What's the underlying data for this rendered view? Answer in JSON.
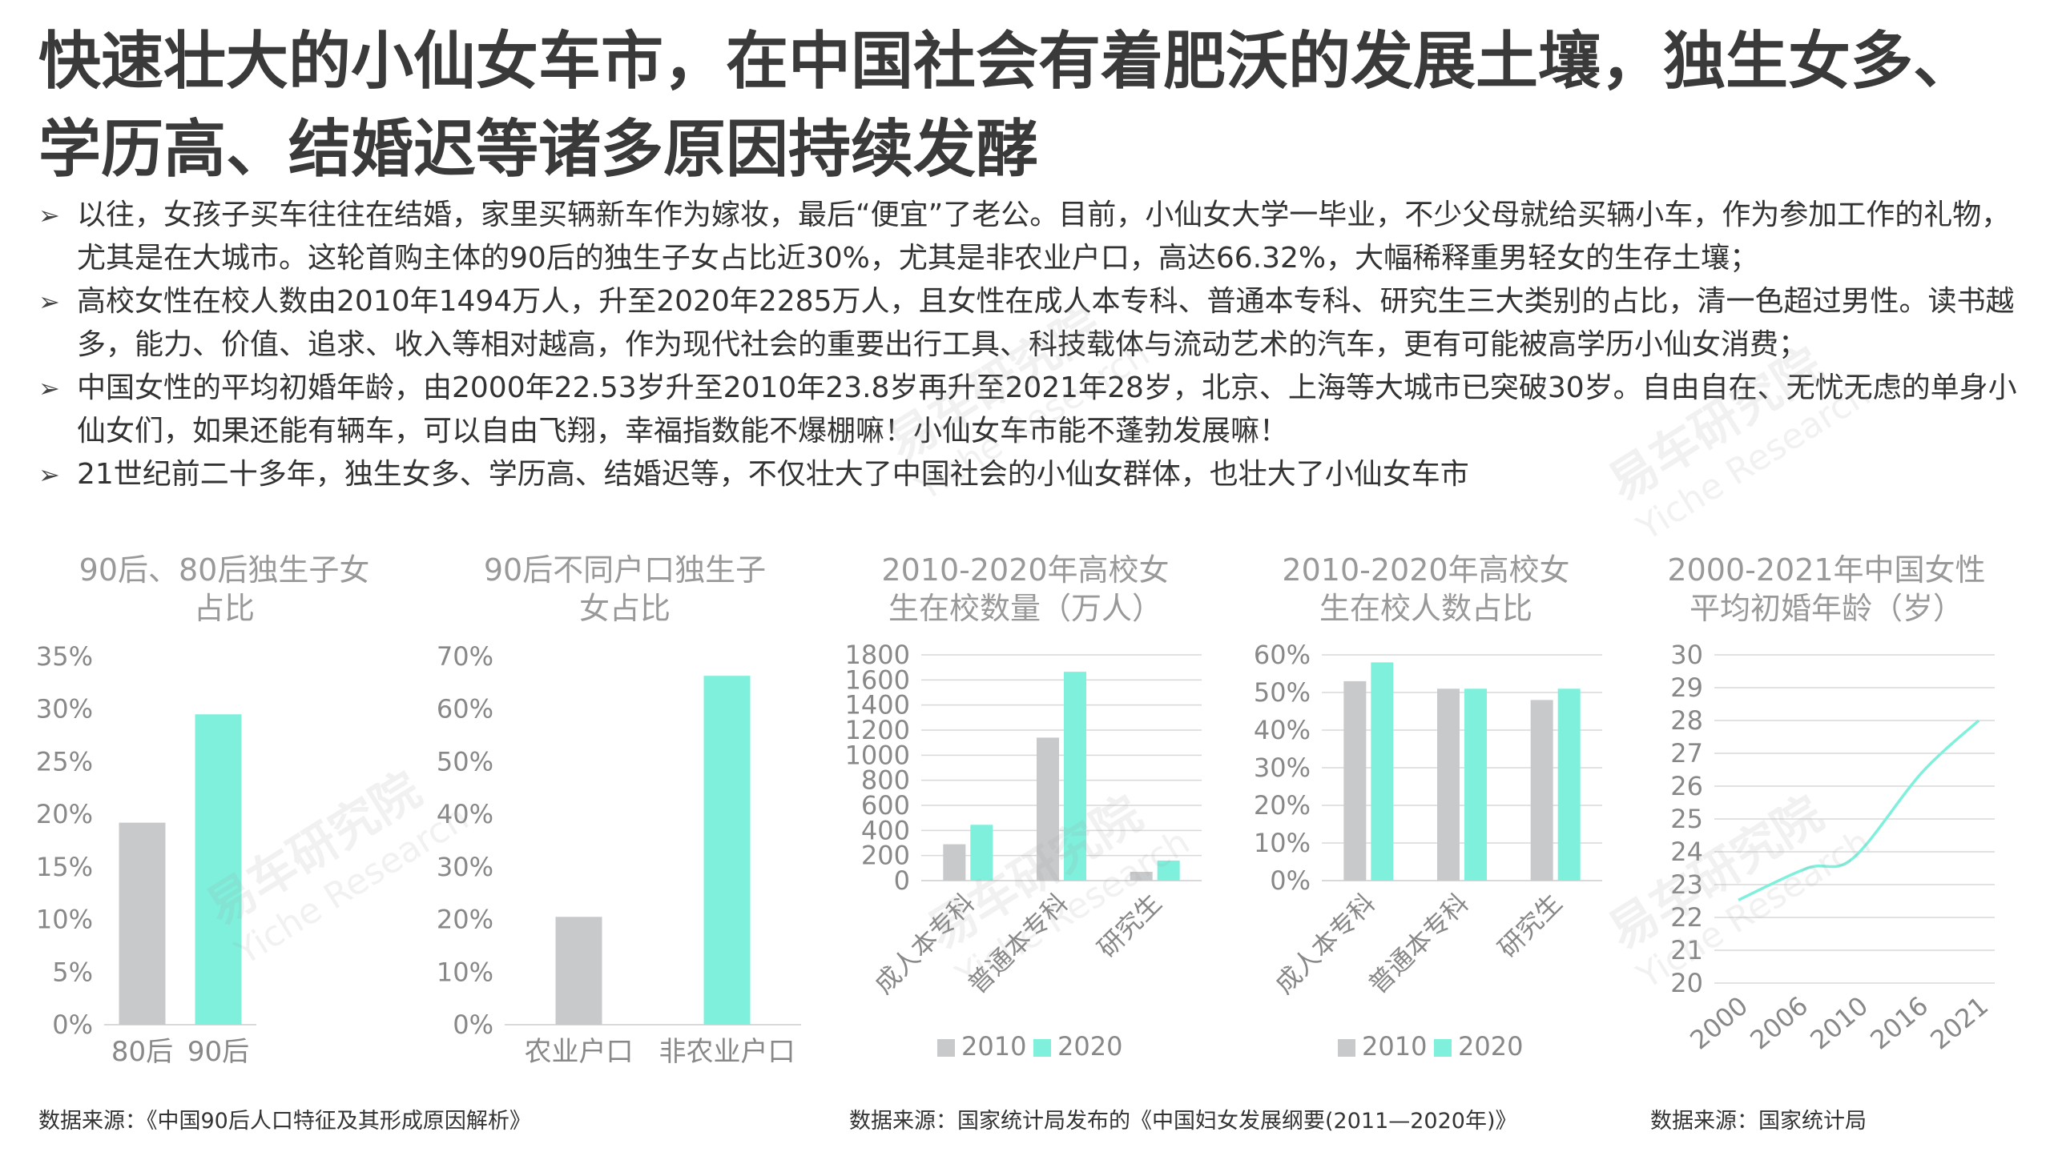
{
  "title": "快速壮大的小仙女车市，在中国社会有着肥沃的发展土壤，独生女多、学历高、结婚迟等诸多原因持续发酵",
  "bullet_marker": "➢",
  "bullets": [
    "以往，女孩子买车往往在结婚，家里买辆新车作为嫁妆，最后“便宜”了老公。目前，小仙女大学一毕业，不少父母就给买辆小车，作为参加工作的礼物，尤其是在大城市。这轮首购主体的90后的独生子女占比近30%，尤其是非农业户口，高达66.32%，大幅稀释重男轻女的生存土壤；",
    "高校女性在校人数由2010年1494万人，升至2020年2285万人，且女性在成人本专科、普通本专科、研究生三大类别的占比，清一色超过男性。读书越多，能力、价值、追求、收入等相对越高，作为现代社会的重要出行工具、科技载体与流动艺术的汽车，更有可能被高学历小仙女消费；",
    "中国女性的平均初婚年龄，由2000年22.53岁升至2010年23.8岁再升至2021年28岁，北京、上海等大城市已突破30岁。自由自在、无忧无虑的单身小仙女们，如果还能有辆车，可以自由飞翔，幸福指数能不爆棚嘛！小仙女车市能不蓬勃发展嘛！",
    "21世纪前二十多年，独生女多、学历高、结婚迟等，不仅壮大了中国社会的小仙女群体，也壮大了小仙女车市"
  ],
  "watermark": {
    "cn": "易车研究院",
    "en": "Yiche Research"
  },
  "colors": {
    "gray": "#c8c9cb",
    "teal": "#7ef0dc",
    "axis": "#d9d9d9",
    "tick": "#888888",
    "title": "#999999"
  },
  "chart_data": [
    {
      "type": "bar",
      "title_lines": [
        "90后、80后独生子女",
        "占比"
      ],
      "categories": [
        "80后",
        "90后"
      ],
      "values": [
        19.2,
        29.5
      ],
      "bar_colors": [
        "#c8c9cb",
        "#7ef0dc"
      ],
      "ylim": [
        0,
        35
      ],
      "yticks": [
        "0%",
        "5%",
        "10%",
        "15%",
        "20%",
        "25%",
        "30%",
        "35%"
      ],
      "grid": false
    },
    {
      "type": "bar",
      "title_lines": [
        "90后不同户口独生子",
        "女占比"
      ],
      "categories": [
        "农业户口",
        "非农业户口"
      ],
      "values": [
        20.5,
        66.32
      ],
      "bar_colors": [
        "#c8c9cb",
        "#7ef0dc"
      ],
      "ylim": [
        0,
        70
      ],
      "yticks": [
        "0%",
        "10%",
        "20%",
        "30%",
        "40%",
        "50%",
        "60%",
        "70%"
      ],
      "grid": false
    },
    {
      "type": "bar",
      "title_lines": [
        "2010-2020年高校女",
        "生在校数量（万人）"
      ],
      "categories": [
        "成人本专科",
        "普通本专科",
        "研究生"
      ],
      "series": [
        {
          "name": "2010",
          "values": [
            290,
            1140,
            70
          ]
        },
        {
          "name": "2020",
          "values": [
            445,
            1665,
            160
          ]
        }
      ],
      "ylim": [
        0,
        1800
      ],
      "yticks": [
        "0",
        "200",
        "400",
        "600",
        "800",
        "1000",
        "1200",
        "1400",
        "1600",
        "1800"
      ],
      "grid": true,
      "legend": "bottom"
    },
    {
      "type": "bar",
      "title_lines": [
        "2010-2020年高校女",
        "生在校人数占比"
      ],
      "categories": [
        "成人本专科",
        "普通本专科",
        "研究生"
      ],
      "series": [
        {
          "name": "2010",
          "values": [
            53,
            51,
            48
          ]
        },
        {
          "name": "2020",
          "values": [
            58,
            51,
            51
          ]
        }
      ],
      "ylim": [
        0,
        60
      ],
      "yticks": [
        "0%",
        "10%",
        "20%",
        "30%",
        "40%",
        "50%",
        "60%"
      ],
      "grid": true,
      "legend": "bottom"
    },
    {
      "type": "line",
      "title_lines": [
        "2000-2021年中国女性",
        "平均初婚年龄（岁）"
      ],
      "x": [
        2000,
        2006,
        2010,
        2016,
        2021
      ],
      "values": [
        22.53,
        23.5,
        23.8,
        26.4,
        28
      ],
      "xlabels": [
        "2000",
        "2006",
        "2010",
        "2016",
        "2021"
      ],
      "ylim": [
        20,
        30
      ],
      "yticks": [
        "20",
        "21",
        "22",
        "23",
        "24",
        "25",
        "26",
        "27",
        "28",
        "29",
        "30"
      ],
      "grid": true
    }
  ],
  "sources": [
    "数据来源：《中国90后人口特征及其形成原因解析》",
    "数据来源：国家统计局发布的《中国妇女发展纲要(2011—2020年)》",
    "数据来源：国家统计局"
  ]
}
